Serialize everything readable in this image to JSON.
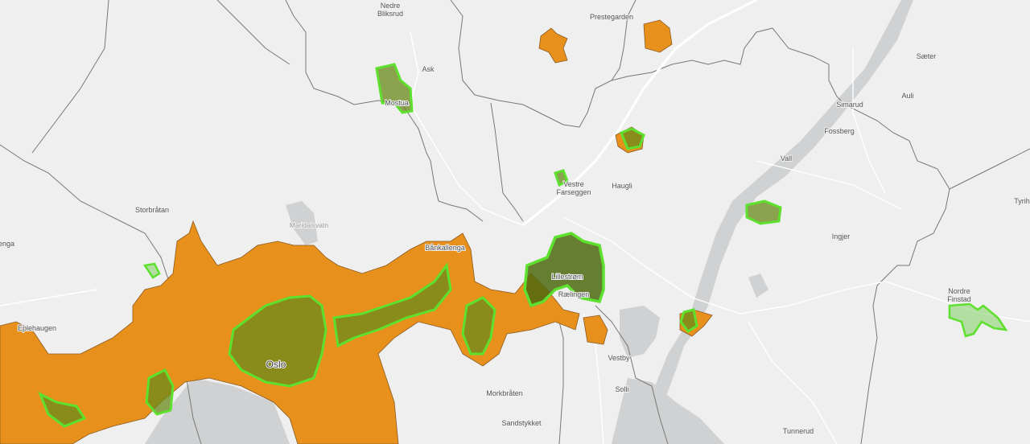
{
  "map": {
    "colors": {
      "background": "#efefef",
      "water": "#cfd1d2",
      "urban_area": "#e8901c",
      "zone_outline": "#5ee02e",
      "zone_fill": "#6a8a1a"
    },
    "place_labels": {
      "nedre_bliksrud_1": "Nedre",
      "nedre_bliksrud_2": "Bliksrud",
      "ask": "Ask",
      "prestegarden": "Prestegarden",
      "mostua": "Mostua",
      "saeter": "Sæter",
      "simarud": "Simarud",
      "auli": "Auli",
      "fossberg": "Fossberg",
      "vall": "Vall",
      "vestre_farseggen_1": "Vestre",
      "vestre_farseggen_2": "Farseggen",
      "haugli": "Haugli",
      "tyrih": "Tyrih",
      "storbratan": "Storbråtan",
      "maridalsvatn": "Maridalsvatn",
      "bankallenga": "Bånkallenga",
      "lillestrom": "Lillestrøm",
      "raelingen": "Rælingen",
      "ingjer": "Ingjer",
      "nordre_finstad_1": "Nordre",
      "nordre_finstad_2": "Finstad",
      "enga": "enga",
      "eplehaugen": "Eplehaugen",
      "oslo": "Oslo",
      "vestby": "Vestby",
      "morkbraten": "Morkbråten",
      "solli": "Solli",
      "sandstykket": "Sandstykket",
      "tunnerud": "Tunnerud"
    }
  }
}
